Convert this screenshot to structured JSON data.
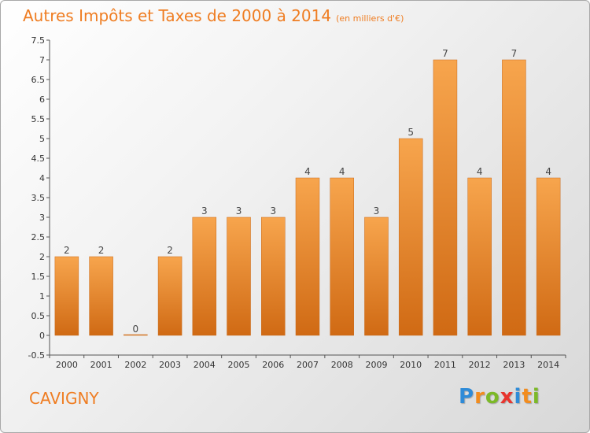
{
  "title": "Autres Impôts et Taxes de 2000 à 2014",
  "unit": "(en milliers d'€)",
  "location": "CAVIGNY",
  "logo": {
    "text": "Proxiti",
    "letters": [
      {
        "char": "P",
        "color": "#2e8bd8"
      },
      {
        "char": "r",
        "color": "#f28c1e"
      },
      {
        "char": "o",
        "color": "#7cb928"
      },
      {
        "char": "x",
        "color": "#e8352e"
      },
      {
        "char": "i",
        "color": "#2e8bd8"
      },
      {
        "char": "t",
        "color": "#f28c1e"
      },
      {
        "char": "i",
        "color": "#7cb928"
      }
    ]
  },
  "colors": {
    "accent": "#ef7d22",
    "bar_light": "#f7a54d",
    "bar_dark": "#d06a14",
    "axis": "#555555"
  },
  "chart_data": {
    "type": "bar",
    "title": "Autres Impôts et Taxes de 2000 à 2014",
    "xlabel": "",
    "ylabel": "",
    "ylim": [
      -0.5,
      7.5
    ],
    "yticks": [
      "-0.5",
      "0",
      "0.5",
      "1",
      "1.5",
      "2",
      "2.5",
      "3",
      "3.5",
      "4",
      "4.5",
      "5",
      "5.5",
      "6",
      "6.5",
      "7",
      "7.5"
    ],
    "categories": [
      "2000",
      "2001",
      "2002",
      "2003",
      "2004",
      "2005",
      "2006",
      "2007",
      "2008",
      "2009",
      "2010",
      "2011",
      "2012",
      "2013",
      "2014"
    ],
    "values": [
      2,
      2,
      0,
      2,
      3,
      3,
      3,
      4,
      4,
      3,
      5,
      7,
      4,
      7,
      4
    ],
    "data_labels": [
      "2",
      "2",
      "0",
      "2",
      "3",
      "3",
      "3",
      "4",
      "4",
      "3",
      "5",
      "7",
      "4",
      "7",
      "4"
    ],
    "grid": false,
    "legend": "none"
  }
}
